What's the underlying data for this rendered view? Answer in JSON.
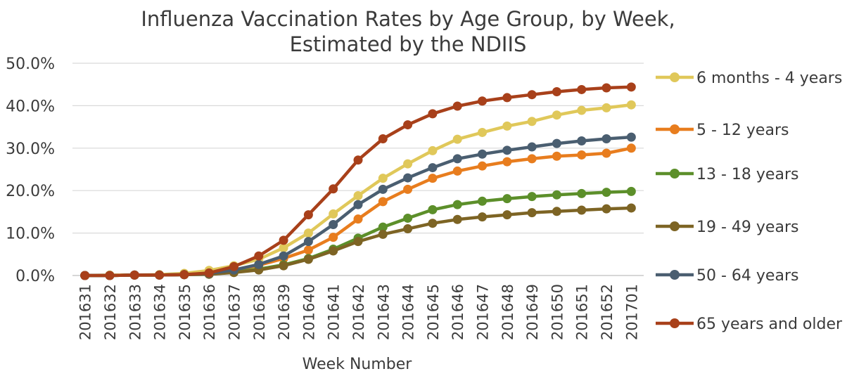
{
  "chart_data": {
    "type": "line",
    "title_line1": "Influenza Vaccination Rates by Age Group, by Week,",
    "title_line2": "Estimated by the NDIIS",
    "xlabel": "Week Number",
    "ylabel": "",
    "ylim": [
      0,
      50
    ],
    "yticks": [
      "0.0%",
      "10.0%",
      "20.0%",
      "30.0%",
      "40.0%",
      "50.0%"
    ],
    "grid": true,
    "legend_position": "right",
    "categories": [
      "201631",
      "201632",
      "201633",
      "201634",
      "201635",
      "201636",
      "201637",
      "201638",
      "201639",
      "201640",
      "201641",
      "201642",
      "201643",
      "201644",
      "201645",
      "201646",
      "201647",
      "201648",
      "201649",
      "201650",
      "201651",
      "201652",
      "201701"
    ],
    "series": [
      {
        "name": "6 months - 4 years",
        "color": "#e0c85a",
        "values": [
          0.0,
          0.1,
          0.1,
          0.2,
          0.5,
          1.2,
          2.3,
          3.8,
          6.5,
          10.0,
          14.5,
          18.8,
          22.9,
          26.3,
          29.4,
          32.1,
          33.7,
          35.2,
          36.3,
          37.8,
          38.9,
          39.5,
          40.2
        ]
      },
      {
        "name": "5 - 12 years",
        "color": "#e87d1e",
        "values": [
          0.0,
          0.0,
          0.1,
          0.1,
          0.2,
          0.5,
          1.2,
          2.4,
          4.0,
          6.0,
          9.0,
          13.3,
          17.4,
          20.3,
          22.9,
          24.6,
          25.8,
          26.8,
          27.5,
          28.1,
          28.4,
          28.8,
          30.0
        ]
      },
      {
        "name": "13 - 18 years",
        "color": "#5c8f2a",
        "values": [
          0.0,
          0.0,
          0.1,
          0.1,
          0.2,
          0.3,
          0.8,
          1.5,
          2.5,
          4.0,
          6.2,
          8.8,
          11.4,
          13.5,
          15.5,
          16.7,
          17.5,
          18.1,
          18.6,
          19.0,
          19.3,
          19.6,
          19.8
        ]
      },
      {
        "name": "19 - 49 years",
        "color": "#7d6424",
        "values": [
          0.0,
          0.0,
          0.1,
          0.1,
          0.2,
          0.3,
          0.7,
          1.3,
          2.3,
          3.8,
          5.8,
          8.0,
          9.7,
          11.0,
          12.3,
          13.2,
          13.8,
          14.3,
          14.8,
          15.1,
          15.4,
          15.7,
          15.9
        ]
      },
      {
        "name": "50 - 64 years",
        "color": "#4a5e70",
        "values": [
          0.0,
          0.0,
          0.1,
          0.1,
          0.2,
          0.5,
          1.3,
          2.6,
          4.6,
          8.0,
          12.0,
          16.7,
          20.3,
          23.0,
          25.4,
          27.5,
          28.6,
          29.5,
          30.3,
          31.1,
          31.7,
          32.2,
          32.6
        ]
      },
      {
        "name": "65 years and older",
        "color": "#a8401a",
        "values": [
          0.0,
          0.0,
          0.1,
          0.1,
          0.2,
          0.6,
          2.1,
          4.6,
          8.3,
          14.3,
          20.4,
          27.2,
          32.2,
          35.5,
          38.1,
          39.9,
          41.1,
          41.9,
          42.6,
          43.3,
          43.8,
          44.2,
          44.4
        ]
      }
    ]
  }
}
